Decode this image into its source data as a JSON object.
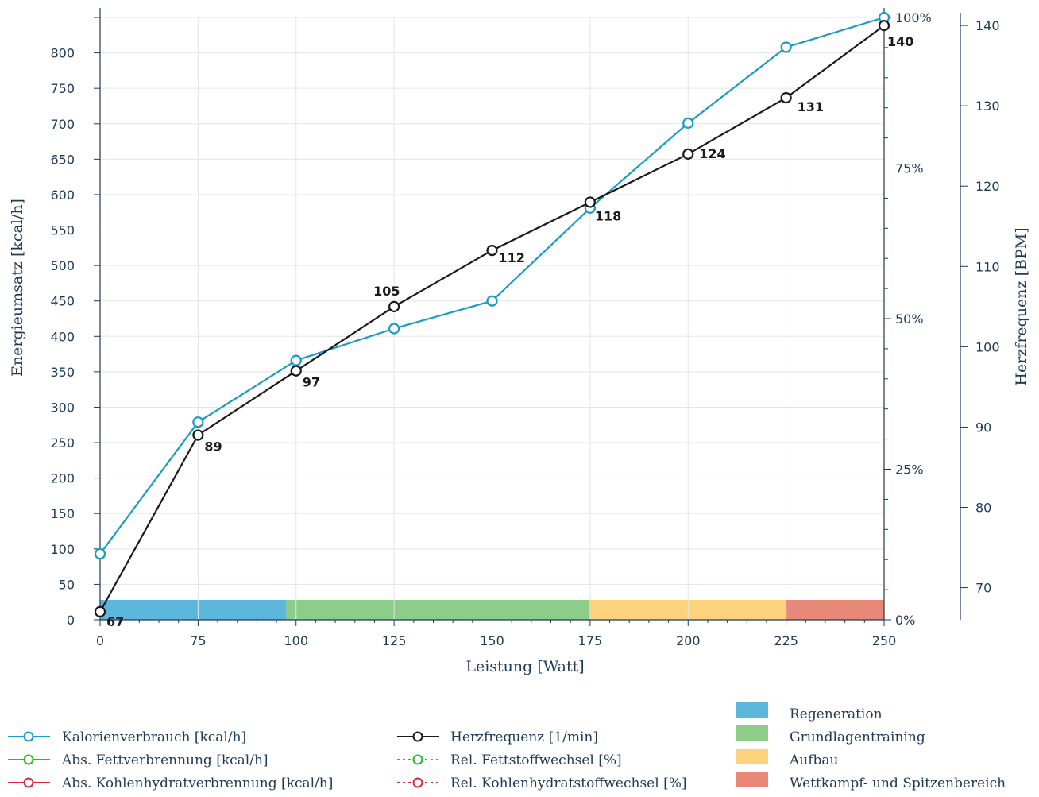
{
  "chart_data": {
    "type": "line",
    "xlabel": "Leistung [Watt]",
    "ylabel_left": "Energieumsatz [kcal/h]",
    "ylabel_right": "Herzfrequenz [BPM]",
    "x_ticks": [
      "0",
      "75",
      "100",
      "125",
      "150",
      "175",
      "200",
      "225",
      "250"
    ],
    "y_left_ticks": [
      "0",
      "50",
      "100",
      "150",
      "200",
      "250",
      "300",
      "350",
      "400",
      "450",
      "500",
      "550",
      "600",
      "650",
      "700",
      "750",
      "800"
    ],
    "y_pct_ticks": [
      "0%",
      "25%",
      "50%",
      "75%",
      "100%"
    ],
    "y_hr_ticks": [
      "70",
      "80",
      "90",
      "100",
      "110",
      "120",
      "130",
      "140"
    ],
    "ylim_left": [
      0,
      850
    ],
    "ylim_hr": [
      66,
      141
    ],
    "series": [
      {
        "name": "Kalorienverbrauch [kcal/h]",
        "axis": "left",
        "color": "#1a9bc4",
        "x": [
          0,
          75,
          100,
          125,
          150,
          175,
          200,
          225,
          250
        ],
        "values": [
          93,
          279,
          366,
          411,
          450,
          581,
          701,
          808,
          850
        ]
      },
      {
        "name": "Herzfrequenz [1/min]",
        "axis": "hr",
        "color": "#1a1a1a",
        "x": [
          0,
          75,
          100,
          125,
          150,
          175,
          200,
          225,
          250
        ],
        "values": [
          67,
          89,
          97,
          105,
          112,
          118,
          124,
          131,
          140
        ],
        "labels": [
          "67",
          "89",
          "97",
          "105",
          "112",
          "118",
          "124",
          "131",
          "140"
        ]
      }
    ],
    "zones": [
      {
        "name": "Regeneration",
        "color": "#5bb8dc",
        "start": 0,
        "end": 1.9
      },
      {
        "name": "Grundlagentraining",
        "color": "#8ccd8a",
        "start": 1.9,
        "end": 5
      },
      {
        "name": "Aufbau",
        "color": "#fcd27c",
        "start": 5,
        "end": 7
      },
      {
        "name": "Wettkampf- und Spitzenbereich",
        "color": "#e88878",
        "start": 7,
        "end": 8
      }
    ],
    "grid": true
  },
  "legend": {
    "items": [
      {
        "label": "Kalorienverbrauch [kcal/h]",
        "color": "#1a9bc4",
        "style": "solid"
      },
      {
        "label": "Abs. Fettverbrennung [kcal/h]",
        "color": "#2db82d",
        "style": "solid"
      },
      {
        "label": "Abs. Kohlenhydratverbrennung [kcal/h]",
        "color": "#d42a3a",
        "style": "solid"
      },
      {
        "label": "Herzfrequenz [1/min]",
        "color": "#1a1a1a",
        "style": "solid"
      },
      {
        "label": "Rel. Fettstoffwechsel [%]",
        "color": "#2db82d",
        "style": "dotted"
      },
      {
        "label": "Rel. Kohlenhydratstoffwechsel [%]",
        "color": "#d42a3a",
        "style": "dotted"
      }
    ],
    "zones": [
      "Regeneration",
      "Grundlagentraining",
      "Aufbau",
      "Wettkampf- und Spitzenbereich"
    ]
  }
}
